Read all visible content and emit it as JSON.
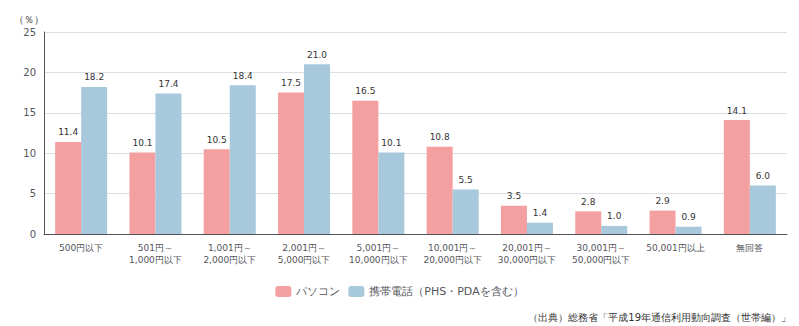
{
  "chart_data": {
    "type": "bar",
    "ylabel": "（％）",
    "categories": [
      "500円以下",
      "501円～\n1,000円以下",
      "1,001円～\n2,000円以下",
      "2,001円～\n5,000円以下",
      "5,001円～\n10,000円以下",
      "10,001円～\n20,000円以下",
      "20,001円～\n30,000円以下",
      "30,001円～\n50,000円以下",
      "50,001円以上",
      "無回答"
    ],
    "series": [
      {
        "name": "パソコン",
        "color": "#F4A0A0",
        "values": [
          11.4,
          10.1,
          10.5,
          17.5,
          16.5,
          10.8,
          3.5,
          2.8,
          2.9,
          14.1
        ],
        "value_labels": [
          "11.4",
          "10.1",
          "10.5",
          "17.5",
          "16.5",
          "10.8",
          "3.5",
          "2.8",
          "2.9",
          "14.1"
        ]
      },
      {
        "name": "携帯電話（PHS・PDAを含む）",
        "color": "#A8C8DC",
        "values": [
          18.2,
          17.4,
          18.4,
          21.0,
          10.1,
          5.5,
          1.4,
          1.0,
          0.9,
          6.0
        ],
        "value_labels": [
          "18.2",
          "17.4",
          "18.4",
          "21.0",
          "10.1",
          "5.5",
          "1.4",
          "1.0",
          "0.9",
          "6.0"
        ]
      }
    ],
    "ylim": [
      0,
      25
    ],
    "yticks": [
      0,
      5,
      10,
      15,
      20,
      25
    ],
    "grid": true,
    "legend": "bottom",
    "data_labels": true,
    "annotations": [
      "（出典）総務省「平成19年通信利用動向調査（世帯編）」"
    ]
  }
}
